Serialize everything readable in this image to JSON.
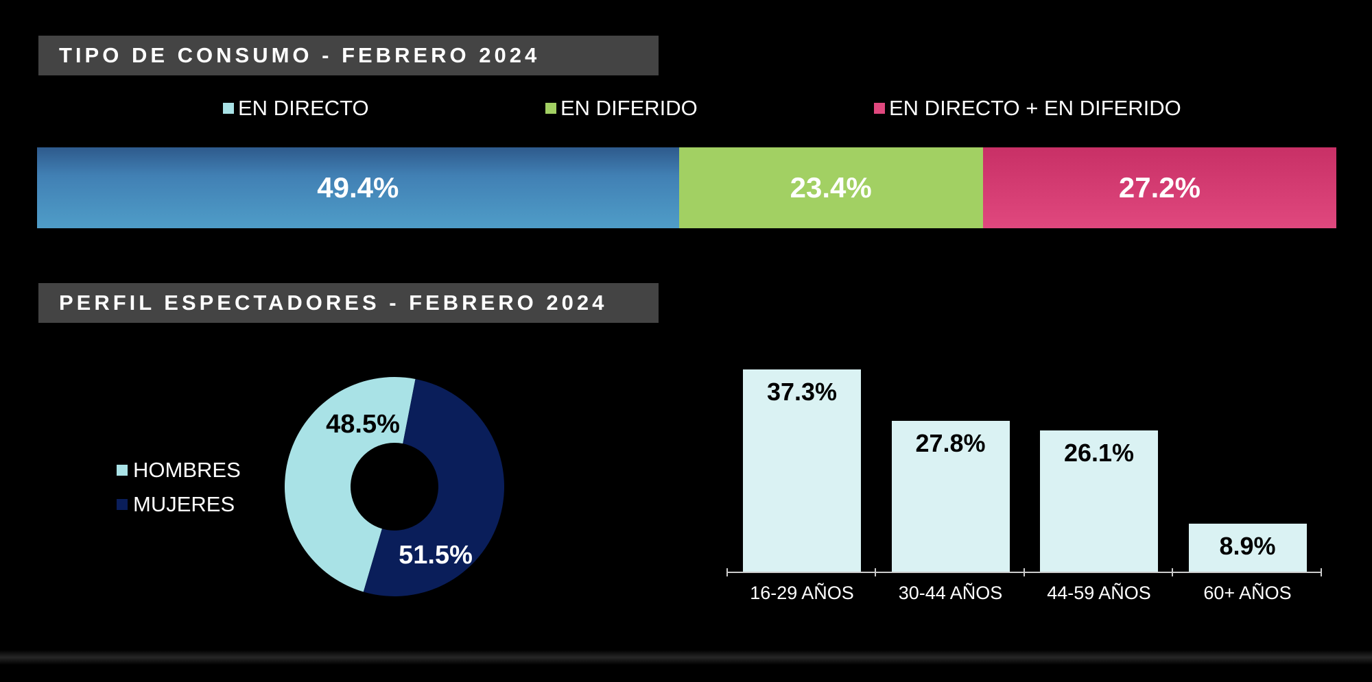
{
  "titles": {
    "consumo": "TIPO DE CONSUMO - FEBRERO 2024",
    "perfil": "PERFIL ESPECTADORES - FEBRERO 2024"
  },
  "colors": {
    "directo": "#4f9dc8",
    "diferido": "#a2d063",
    "ambos": "#e0487e",
    "hombres": "#a9e2e6",
    "mujeres": "#0a1e5a",
    "age_bars": "#daf2f3"
  },
  "chart_data": [
    {
      "type": "bar",
      "orientation": "horizontal-stacked",
      "title": "TIPO DE CONSUMO - FEBRERO 2024",
      "series": [
        {
          "name": "EN DIRECTO",
          "value": 49.4,
          "label": "49.4%"
        },
        {
          "name": "EN DIFERIDO",
          "value": 23.4,
          "label": "23.4%"
        },
        {
          "name": "EN DIRECTO + EN DIFERIDO",
          "value": 27.2,
          "label": "27.2%"
        }
      ],
      "legend": "top"
    },
    {
      "type": "pie",
      "variant": "donut",
      "title": "PERFIL ESPECTADORES - FEBRERO 2024",
      "slices": [
        {
          "name": "HOMBRES",
          "value": 48.5,
          "label": "48.5%"
        },
        {
          "name": "MUJERES",
          "value": 51.5,
          "label": "51.5%"
        }
      ],
      "legend": "left"
    },
    {
      "type": "bar",
      "categories": [
        "16-29 AÑOS",
        "30-44 AÑOS",
        "44-59 AÑOS",
        "60+ AÑOS"
      ],
      "values": [
        37.3,
        27.8,
        26.1,
        8.9
      ],
      "labels": [
        "37.3%",
        "27.8%",
        "26.1%",
        "8.9%"
      ],
      "ylim": [
        0,
        37.3
      ],
      "grid": false
    }
  ]
}
